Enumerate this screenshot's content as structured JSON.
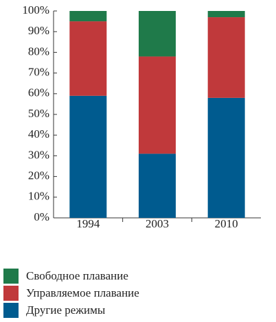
{
  "chart_data": {
    "type": "stacked_bar",
    "categories": [
      "1994",
      "2003",
      "2010"
    ],
    "series": [
      {
        "name": "Другие режимы",
        "color": "#005b8f",
        "values": [
          59,
          31,
          58
        ]
      },
      {
        "name": "Управляемое плавание",
        "color": "#c0393b",
        "values": [
          36,
          47,
          39
        ]
      },
      {
        "name": "Свободное плавание",
        "color": "#1f7a4a",
        "values": [
          5,
          22,
          3
        ]
      }
    ],
    "ylim": [
      0,
      100
    ],
    "yticks": [
      {
        "value": 0,
        "label": "0%"
      },
      {
        "value": 10,
        "label": "10%"
      },
      {
        "value": 20,
        "label": "20%"
      },
      {
        "value": 30,
        "label": "30%"
      },
      {
        "value": 40,
        "label": "40%"
      },
      {
        "value": 50,
        "label": "50%"
      },
      {
        "value": 60,
        "label": "60%"
      },
      {
        "value": 70,
        "label": "70%"
      },
      {
        "value": 80,
        "label": "80%"
      },
      {
        "value": 90,
        "label": "90%"
      },
      {
        "value": 100,
        "label": "100%"
      }
    ],
    "legend": "bottom-left"
  }
}
